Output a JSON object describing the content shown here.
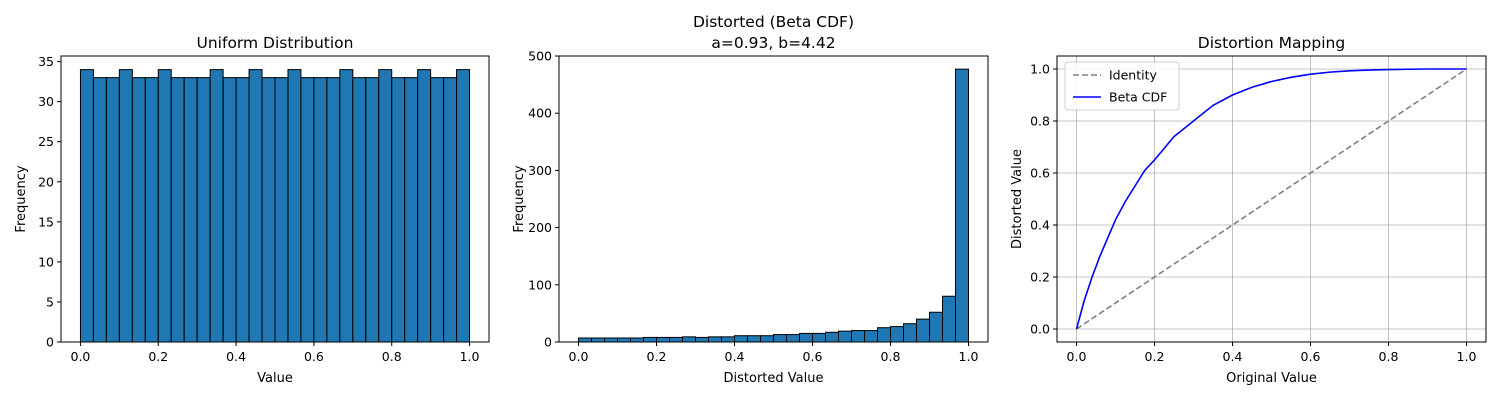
{
  "chart_data": [
    {
      "type": "bar",
      "title": "Uniform Distribution",
      "xlabel": "Value",
      "ylabel": "Frequency",
      "xlim": [
        -0.05,
        1.05
      ],
      "ylim": [
        0,
        35.7
      ],
      "xticks": [
        0.0,
        0.2,
        0.4,
        0.6,
        0.8,
        1.0
      ],
      "xtick_labels": [
        "0.0",
        "0.2",
        "0.4",
        "0.6",
        "0.8",
        "1.0"
      ],
      "yticks": [
        0,
        5,
        10,
        15,
        20,
        25,
        30,
        35
      ],
      "ytick_labels": [
        "0",
        "5",
        "10",
        "15",
        "20",
        "25",
        "30",
        "35"
      ],
      "bin_range": [
        0,
        1
      ],
      "counts": [
        34,
        33,
        33,
        34,
        33,
        33,
        34,
        33,
        33,
        33,
        34,
        33,
        33,
        34,
        33,
        33,
        34,
        33,
        33,
        33,
        34,
        33,
        33,
        34,
        33,
        33,
        34,
        33,
        33,
        34
      ],
      "bar_color": "#1f77b4",
      "edge_color": "#000000",
      "grid": false
    },
    {
      "type": "bar",
      "title": "Distorted (Beta CDF)\na=0.93, b=4.42",
      "xlabel": "Distorted Value",
      "ylabel": "Frequency",
      "xlim": [
        -0.05,
        1.05
      ],
      "ylim": [
        0,
        500
      ],
      "xticks": [
        0.0,
        0.2,
        0.4,
        0.6,
        0.8,
        1.0
      ],
      "xtick_labels": [
        "0.0",
        "0.2",
        "0.4",
        "0.6",
        "0.8",
        "1.0"
      ],
      "yticks": [
        0,
        100,
        200,
        300,
        400,
        500
      ],
      "ytick_labels": [
        "0",
        "100",
        "200",
        "300",
        "400",
        "500"
      ],
      "bin_range": [
        0,
        1
      ],
      "counts": [
        7,
        7,
        7,
        7,
        7,
        8,
        8,
        8,
        9,
        8,
        9,
        9,
        11,
        11,
        11,
        13,
        13,
        15,
        15,
        17,
        19,
        20,
        20,
        25,
        27,
        32,
        40,
        52,
        80,
        477
      ],
      "bar_color": "#1f77b4",
      "edge_color": "#000000",
      "grid": false
    },
    {
      "type": "line",
      "title": "Distortion Mapping",
      "xlabel": "Original Value",
      "ylabel": "Distorted Value",
      "xlim": [
        -0.05,
        1.05
      ],
      "ylim": [
        -0.05,
        1.05
      ],
      "xticks": [
        0.0,
        0.2,
        0.4,
        0.6,
        0.8,
        1.0
      ],
      "xtick_labels": [
        "0.0",
        "0.2",
        "0.4",
        "0.6",
        "0.8",
        "1.0"
      ],
      "yticks": [
        0.0,
        0.2,
        0.4,
        0.6,
        0.8,
        1.0
      ],
      "ytick_labels": [
        "0.0",
        "0.2",
        "0.4",
        "0.6",
        "0.8",
        "1.0"
      ],
      "grid": true,
      "legend": "upper-left",
      "series": [
        {
          "name": "Identity",
          "color": "#808080",
          "dash": true,
          "x": [
            0,
            1
          ],
          "y": [
            0,
            1
          ]
        },
        {
          "name": "Beta CDF",
          "color": "#0000ff",
          "dash": false,
          "x": [
            0,
            0.02,
            0.04,
            0.06,
            0.08,
            0.1,
            0.125,
            0.15,
            0.175,
            0.2,
            0.25,
            0.3,
            0.35,
            0.4,
            0.45,
            0.5,
            0.55,
            0.6,
            0.65,
            0.7,
            0.75,
            0.8,
            0.85,
            0.9,
            0.95,
            1.0
          ],
          "y": [
            0,
            0.11,
            0.2,
            0.28,
            0.35,
            0.42,
            0.49,
            0.55,
            0.61,
            0.65,
            0.74,
            0.8,
            0.86,
            0.9,
            0.93,
            0.952,
            0.968,
            0.98,
            0.988,
            0.993,
            0.996,
            0.998,
            0.999,
            1.0,
            1.0,
            1.0
          ]
        }
      ]
    }
  ]
}
